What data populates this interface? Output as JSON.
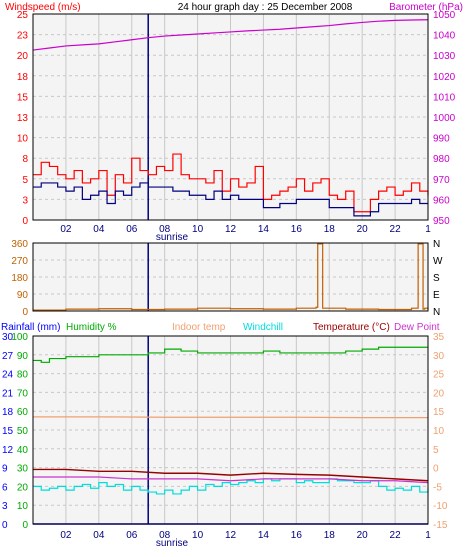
{
  "title": "24 hour graph day : 25 December 2008",
  "colors": {
    "background": "#ffffff",
    "panel": "#f4f4f4",
    "grid": "#c8c8c8",
    "frame": "#000000",
    "wind": "#ff0000",
    "gust": "#ff0000",
    "avgwind": "#000080",
    "baro": "#cc00cc",
    "winddir": "#c06000",
    "rain": "#0000ff",
    "humidity": "#00aa00",
    "indoor": "#f0a070",
    "windchill": "#00dddd",
    "temperature": "#990000",
    "dewpoint": "#cc33cc",
    "sunrise": "#000080"
  },
  "chart_data": [
    {
      "type": "line",
      "name": "wind-barometer",
      "title": "24 hour graph day : 25 December 2008",
      "ylabel_left": "Windspeed (m/s)",
      "ylabel_right": "Barometer (hPa)",
      "x_tick_labels": [
        "02",
        "04",
        "06",
        "08",
        "10",
        "12",
        "14",
        "16",
        "18",
        "20",
        "22",
        "1"
      ],
      "x_annotation": "sunrise",
      "x_range": [
        0,
        24
      ],
      "y_left_ticks": [
        "0",
        "3",
        "5",
        "8",
        "10",
        "13",
        "15",
        "18",
        "20",
        "23",
        "25"
      ],
      "y_right_ticks": [
        "950",
        "960",
        "970",
        "980",
        "990",
        "1000",
        "1010",
        "1020",
        "1030",
        "1040",
        "1050"
      ],
      "ylim_left": [
        0,
        25
      ],
      "ylim_right": [
        950,
        1050
      ],
      "grid": true,
      "series": [
        {
          "key": "baro",
          "axis": "right",
          "x": [
            0,
            1,
            2,
            3,
            4,
            5,
            6,
            7,
            8,
            9,
            10,
            11,
            12,
            13,
            14,
            15,
            16,
            17,
            18,
            19,
            20,
            21,
            22,
            23,
            24
          ],
          "values": [
            1032.5,
            1033.5,
            1034.5,
            1035,
            1035.5,
            1036.5,
            1037.5,
            1038.5,
            1039.3,
            1039.8,
            1040.3,
            1040.8,
            1041.3,
            1041.8,
            1042.2,
            1042.6,
            1043.2,
            1043.8,
            1044.4,
            1045.2,
            1045.9,
            1046.5,
            1046.9,
            1047.1,
            1047.2
          ]
        },
        {
          "key": "gust",
          "axis": "left",
          "x": [
            0,
            0.5,
            1,
            1.5,
            2,
            2.5,
            3,
            3.5,
            4,
            4.5,
            5,
            5.5,
            6,
            6.5,
            7,
            7.5,
            8,
            8.5,
            9,
            9.5,
            10,
            10.5,
            11,
            11.5,
            12,
            12.5,
            13,
            13.5,
            14,
            14.5,
            15,
            15.5,
            16,
            16.5,
            17,
            17.5,
            18,
            18.5,
            19,
            19.5,
            20,
            20.5,
            21,
            21.5,
            22,
            22.5,
            23,
            23.5,
            24
          ],
          "values": [
            5.5,
            7,
            6.5,
            5.5,
            5,
            6,
            4.5,
            5,
            6,
            3,
            5.5,
            4.5,
            7.5,
            6,
            5.5,
            6.5,
            6,
            8,
            5.5,
            5,
            5,
            4.5,
            6,
            3.5,
            5,
            4,
            4.5,
            6.5,
            2.5,
            3,
            3.5,
            4,
            5,
            3.5,
            4.5,
            5,
            3,
            2.5,
            3.5,
            1,
            1,
            2.5,
            3.5,
            4,
            3,
            3.5,
            4.5,
            3.5,
            3
          ]
        },
        {
          "key": "avgwind",
          "axis": "left",
          "x": [
            0,
            0.5,
            1,
            1.5,
            2,
            2.5,
            3,
            3.5,
            4,
            4.5,
            5,
            5.5,
            6,
            6.5,
            7,
            7.5,
            8,
            8.5,
            9,
            9.5,
            10,
            10.5,
            11,
            11.5,
            12,
            12.5,
            13,
            13.5,
            14,
            14.5,
            15,
            15.5,
            16,
            16.5,
            17,
            17.5,
            18,
            18.5,
            19,
            19.5,
            20,
            20.5,
            21,
            21.5,
            22,
            22.5,
            23,
            23.5,
            24
          ],
          "values": [
            4,
            4.5,
            4.5,
            4,
            3.5,
            4,
            2.5,
            3,
            3.5,
            2,
            3.5,
            3,
            4,
            4.5,
            4,
            4,
            4,
            3.5,
            3.5,
            3,
            3,
            2.5,
            3.5,
            2.5,
            3,
            2.5,
            2.5,
            2.5,
            1.5,
            1.5,
            2,
            2,
            2.5,
            2.5,
            2.5,
            2.5,
            1.5,
            1.5,
            1.5,
            0.5,
            0.5,
            1,
            2,
            2,
            2,
            2,
            2.5,
            2,
            2
          ]
        }
      ]
    },
    {
      "type": "line",
      "name": "wind-direction",
      "x_range": [
        0,
        24
      ],
      "y_left_ticks": [
        "0",
        "90",
        "180",
        "270",
        "360"
      ],
      "y_right_ticks": [
        "N",
        "E",
        "S",
        "W",
        "N"
      ],
      "ylim": [
        0,
        360
      ],
      "grid": true,
      "series": [
        {
          "key": "winddir",
          "x": [
            0,
            2,
            4,
            6,
            8,
            10,
            12,
            14,
            16,
            17.2,
            17.3,
            17.5,
            17.6,
            19,
            21,
            23,
            23.4,
            23.5,
            23.7,
            23.8,
            24
          ],
          "values": [
            5,
            10,
            12,
            8,
            10,
            15,
            12,
            10,
            15,
            20,
            355,
            355,
            15,
            10,
            8,
            15,
            355,
            355,
            10,
            15,
            10
          ]
        }
      ]
    },
    {
      "type": "line",
      "name": "temperature-humidity-rain",
      "legend": [
        "Rainfall (mm)",
        "Humidity %",
        "Indoor temp",
        "Windchill",
        "Temperature (°C)",
        "Dew Point"
      ],
      "x_tick_labels": [
        "02",
        "04",
        "06",
        "08",
        "10",
        "12",
        "14",
        "16",
        "18",
        "20",
        "22",
        "1"
      ],
      "x_annotation": "sunrise",
      "x_range": [
        0,
        24
      ],
      "y_rain_ticks": [
        "0",
        "3",
        "6",
        "9",
        "12",
        "15",
        "18",
        "21",
        "24",
        "27",
        "30"
      ],
      "y_humidity_ticks": [
        "0",
        "10",
        "20",
        "30",
        "40",
        "50",
        "60",
        "70",
        "80",
        "90",
        "100"
      ],
      "y_temp_ticks": [
        "-15",
        "-10",
        "-5",
        "0",
        "5",
        "10",
        "15",
        "20",
        "25",
        "30",
        "35"
      ],
      "ylim_rain": [
        0,
        30
      ],
      "ylim_humidity": [
        0,
        100
      ],
      "ylim_temp": [
        -15,
        35
      ],
      "grid": true,
      "series": [
        {
          "key": "humidity",
          "axis": "humidity",
          "x": [
            0,
            0.5,
            1,
            2,
            3,
            4,
            5,
            6,
            7,
            8,
            9,
            10,
            11,
            12,
            13,
            14,
            15,
            16,
            17,
            18,
            19,
            20,
            21,
            22,
            23,
            24
          ],
          "values": [
            87,
            86,
            88,
            89,
            89,
            90,
            90,
            90,
            91,
            93,
            92,
            91,
            91,
            91,
            91,
            92,
            91,
            91,
            91,
            91,
            92,
            93,
            94,
            94,
            94,
            94
          ]
        },
        {
          "key": "indoor",
          "axis": "temp",
          "x": [
            0,
            4,
            8,
            12,
            16,
            20,
            24
          ],
          "values": [
            13.5,
            13.5,
            13.4,
            13.4,
            13.4,
            13.3,
            13.3
          ]
        },
        {
          "key": "temperature",
          "axis": "temp",
          "x": [
            0,
            2,
            4,
            6,
            8,
            10,
            12,
            14,
            16,
            18,
            20,
            22,
            24
          ],
          "values": [
            -0.5,
            -0.5,
            -1,
            -1,
            -1.5,
            -1.5,
            -2,
            -1.5,
            -1.8,
            -2,
            -2.5,
            -3,
            -3.5
          ]
        },
        {
          "key": "dewpoint",
          "axis": "temp",
          "x": [
            0,
            2,
            4,
            6,
            8,
            10,
            12,
            14,
            16,
            18,
            20,
            22,
            24
          ],
          "values": [
            -2.5,
            -2.5,
            -2.5,
            -3,
            -3,
            -3,
            -3.5,
            -3,
            -3,
            -3,
            -3.5,
            -3.5,
            -4
          ]
        },
        {
          "key": "windchill",
          "axis": "temp",
          "x": [
            0,
            0.5,
            1,
            1.5,
            2,
            2.5,
            3,
            3.5,
            4,
            4.5,
            5,
            5.5,
            6,
            6.5,
            7,
            7.5,
            8,
            8.5,
            9,
            9.5,
            10,
            10.5,
            11,
            11.5,
            12,
            12.5,
            13,
            13.5,
            14,
            14.5,
            15,
            15.5,
            16,
            16.5,
            17,
            17.5,
            18,
            18.5,
            19,
            19.5,
            20,
            20.5,
            21,
            21.5,
            22,
            22.5,
            23,
            23.5,
            24
          ],
          "values": [
            -5,
            -6,
            -5.5,
            -5,
            -6,
            -5,
            -4.5,
            -5.5,
            -4,
            -5,
            -4.5,
            -6,
            -5,
            -6,
            -6.5,
            -7,
            -6,
            -7,
            -6,
            -5,
            -6,
            -4.5,
            -5,
            -4,
            -4.5,
            -4,
            -3.5,
            -4,
            -3,
            -3.5,
            -3,
            -3,
            -4,
            -3.5,
            -4,
            -4,
            -3,
            -3.5,
            -3.5,
            -4,
            -4,
            -3.5,
            -5,
            -6,
            -5.5,
            -6,
            -5,
            -6.5,
            -5.5
          ]
        },
        {
          "key": "rain",
          "axis": "rain",
          "x": [
            0,
            24
          ],
          "values": [
            0,
            0
          ]
        }
      ]
    }
  ]
}
